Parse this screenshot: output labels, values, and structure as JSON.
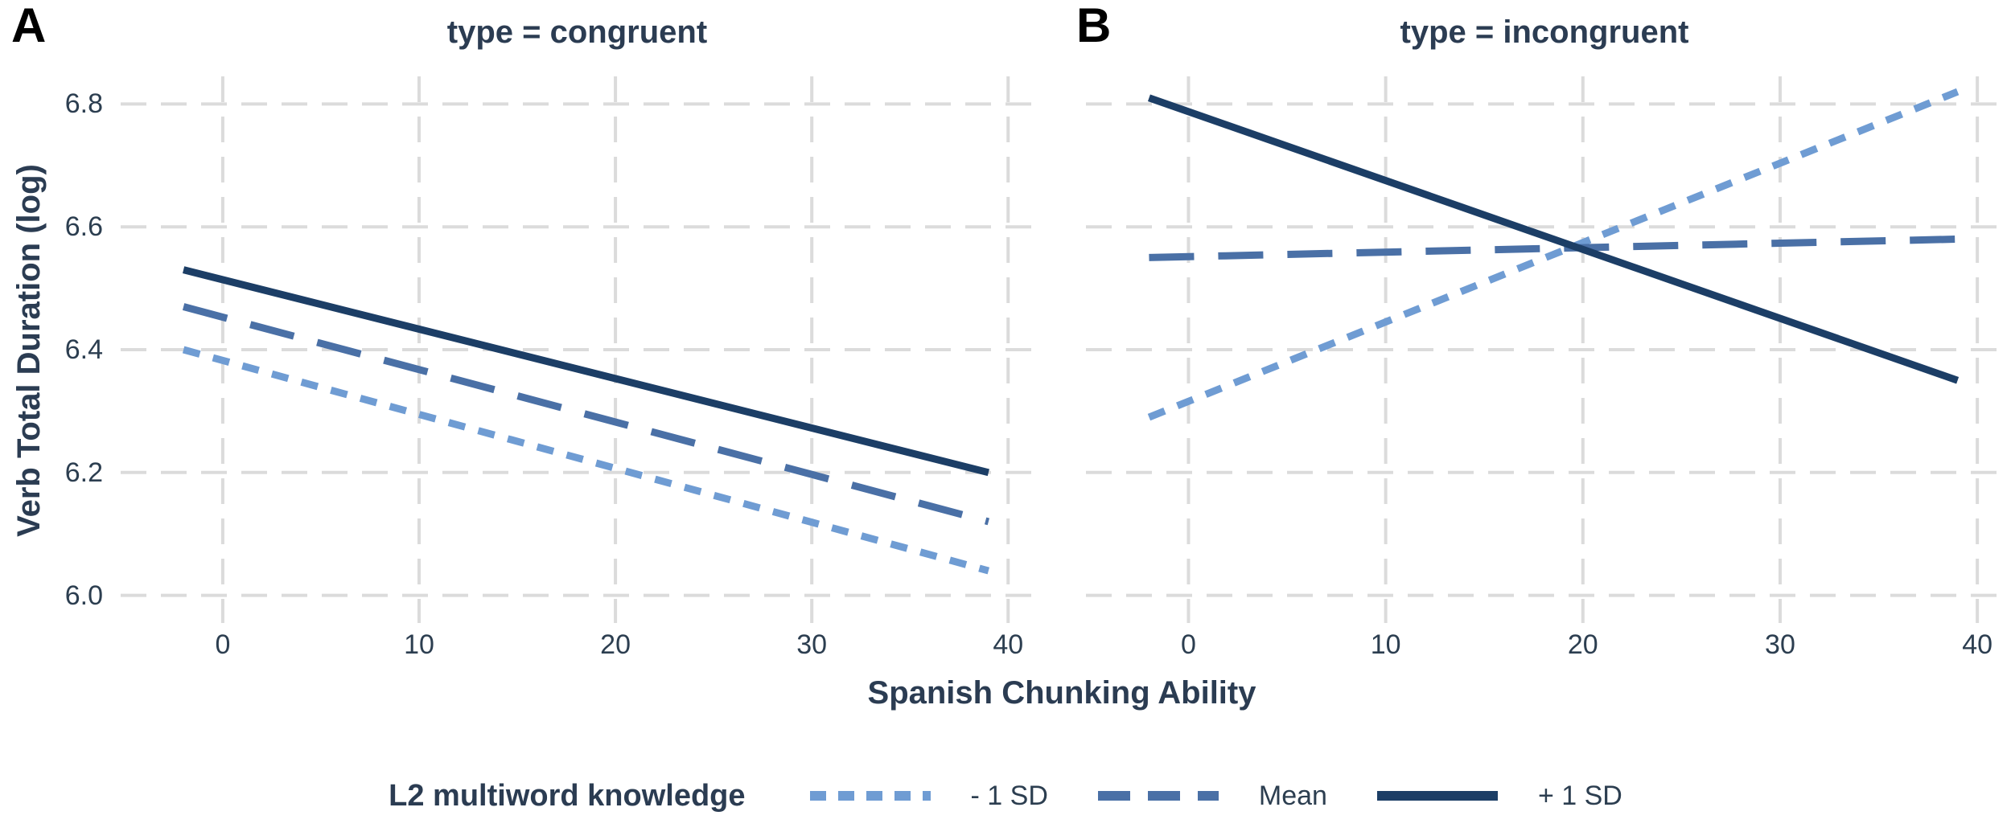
{
  "figure": {
    "panel_a_label": "A",
    "panel_b_label": "B",
    "xlabel": "Spanish Chunking Ability",
    "ylabel": "Verb Total Duration (log)"
  },
  "legend": {
    "title": "L2 multiword knowledge",
    "items": [
      {
        "label": "- 1 SD",
        "style": "dotted",
        "color": "#6F9CD3"
      },
      {
        "label": "Mean",
        "style": "dashed",
        "color": "#4A70A6"
      },
      {
        "label": "+ 1 SD",
        "style": "solid",
        "color": "#1C3E66"
      }
    ]
  },
  "colors": {
    "grid": "#DBDBDB",
    "text": "#2C3E50",
    "minus_1_sd": "#6F9CD3",
    "mean": "#4A70A6",
    "plus_1_sd": "#1C3E66"
  },
  "chart_data": [
    {
      "type": "line",
      "panel": "A",
      "title": "type = congruent",
      "xlabel": "Spanish Chunking Ability",
      "ylabel": "Verb Total Duration (log)",
      "x": [
        -2,
        39
      ],
      "series": [
        {
          "name": "- 1 SD",
          "style": "dotted",
          "color": "#6F9CD3",
          "values": [
            6.4,
            6.04
          ]
        },
        {
          "name": "Mean",
          "style": "dashed",
          "color": "#4A70A6",
          "values": [
            6.47,
            6.12
          ]
        },
        {
          "name": "+ 1 SD",
          "style": "solid",
          "color": "#1C3E66",
          "values": [
            6.53,
            6.2
          ]
        }
      ],
      "xticks": [
        "0",
        "10",
        "20",
        "30",
        "40"
      ],
      "xtick_values": [
        0,
        10,
        20,
        30,
        40
      ],
      "yticks": [
        "6.0",
        "6.2",
        "6.4",
        "6.6",
        "6.8"
      ],
      "ytick_values": [
        6.0,
        6.2,
        6.4,
        6.6,
        6.8
      ],
      "xlim": [
        -5.2,
        41.3
      ],
      "ylim": [
        5.955,
        6.845
      ],
      "grid": "dashed",
      "legend_position": "bottom"
    },
    {
      "type": "line",
      "panel": "B",
      "title": "type = incongruent",
      "xlabel": "Spanish Chunking Ability",
      "ylabel": "Verb Total Duration (log)",
      "x": [
        -2,
        39
      ],
      "series": [
        {
          "name": "- 1 SD",
          "style": "dotted",
          "color": "#6F9CD3",
          "values": [
            6.29,
            6.82
          ]
        },
        {
          "name": "Mean",
          "style": "dashed",
          "color": "#4A70A6",
          "values": [
            6.55,
            6.58
          ]
        },
        {
          "name": "+ 1 SD",
          "style": "solid",
          "color": "#1C3E66",
          "values": [
            6.81,
            6.35
          ]
        }
      ],
      "xticks": [
        "0",
        "10",
        "20",
        "30",
        "40"
      ],
      "xtick_values": [
        0,
        10,
        20,
        30,
        40
      ],
      "yticks": [
        "6.0",
        "6.2",
        "6.4",
        "6.6",
        "6.8"
      ],
      "ytick_values": [
        6.0,
        6.2,
        6.4,
        6.6,
        6.8
      ],
      "xlim": [
        -5.2,
        41.3
      ],
      "ylim": [
        5.955,
        6.845
      ],
      "grid": "dashed",
      "legend_position": "bottom"
    }
  ]
}
